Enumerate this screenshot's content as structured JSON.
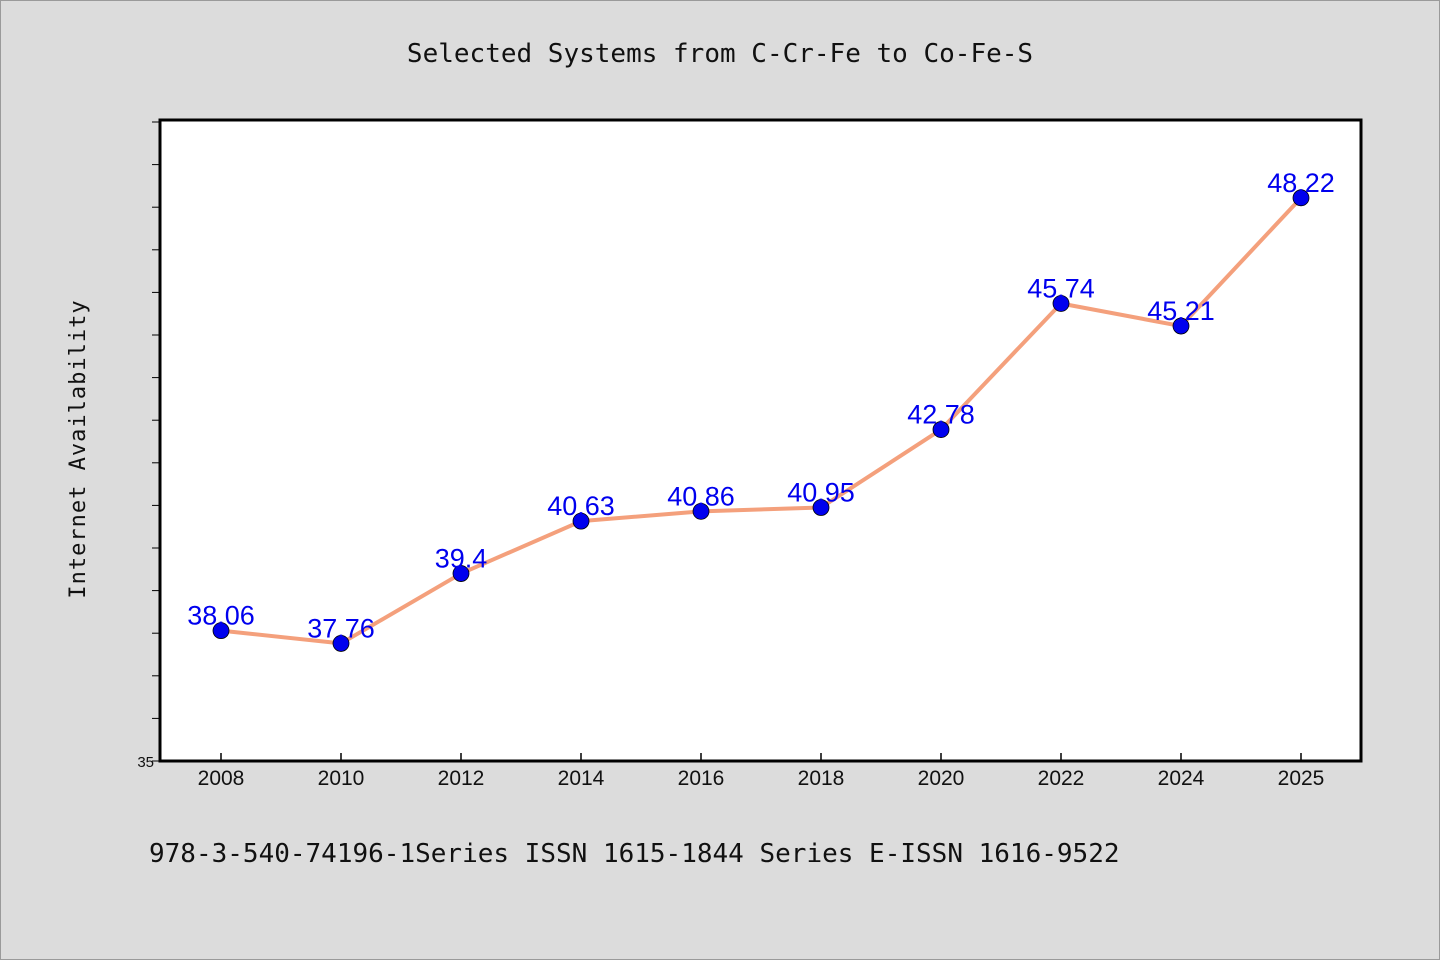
{
  "chart_data": {
    "type": "line",
    "title": "Selected Systems from C-Cr-Fe to Co-Fe-S",
    "xlabel": "",
    "ylabel": "Internet Availability",
    "categories": [
      "2008",
      "2010",
      "2012",
      "2014",
      "2016",
      "2018",
      "2020",
      "2022",
      "2024",
      "2025"
    ],
    "series": [
      {
        "values": [
          38.06,
          37.76,
          39.4,
          40.63,
          40.86,
          40.95,
          42.78,
          45.74,
          45.21,
          48.22
        ],
        "labels": [
          "38.06",
          "37.76",
          "39.4",
          "40.63",
          "40.86",
          "40.95",
          "42.78",
          "45.74",
          "45.21",
          "48.22"
        ]
      }
    ],
    "ylim": [
      35,
      50
    ],
    "yticks_labeled": [
      "35"
    ],
    "grid": false,
    "legend": "none",
    "line_color": "#f4a07c",
    "marker_color": "#0000ee",
    "label_color": "#0000ee"
  },
  "footer": {
    "text": "978-3-540-74196-1Series ISSN 1615-1844 Series E-ISSN 1616-9522"
  },
  "colors": {
    "background": "#dcdcdc",
    "plot_background": "#ffffff"
  }
}
